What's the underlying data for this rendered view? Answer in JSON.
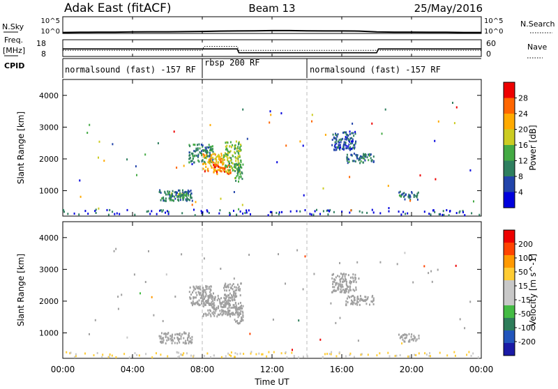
{
  "header": {
    "station": "Adak East (fitACF)",
    "beam": "Beam 13",
    "date": "25/May/2016"
  },
  "noise_panel": {
    "left_label": "N.Sky",
    "left_ticks": [
      "10^5",
      "10^0"
    ],
    "right_ticks": [
      "10^5",
      "10^0"
    ],
    "right_label": "N.Search"
  },
  "freq_panel": {
    "left_label_1": "Freq.",
    "left_label_2": "[MHz]",
    "left_ticks": [
      "18",
      "8"
    ],
    "right_ticks": [
      "60",
      "0"
    ],
    "right_label": "Nave"
  },
  "cpid_panel": {
    "label": "CPID",
    "segments": [
      {
        "start_hour": 0,
        "end_hour": 8,
        "text": "normalsound (fast) -157 RF"
      },
      {
        "start_hour": 8,
        "end_hour": 14,
        "text": "rbsp 200 RF"
      },
      {
        "start_hour": 14,
        "end_hour": 24,
        "text": "normalsound (fast) -157 RF"
      }
    ]
  },
  "colors": {
    "power_scale": [
      "#0000dd",
      "#2244aa",
      "#2f7f5f",
      "#44aa44",
      "#cccc22",
      "#ffaa00",
      "#ff6600",
      "#ee0000"
    ],
    "velocity_scale": [
      "#1a1aa6",
      "#2255bb",
      "#2e7d5a",
      "#44bb44",
      "#c8c8c8",
      "#c8c8c8",
      "#ffcc33",
      "#ff9900",
      "#ff4400",
      "#ee0000"
    ],
    "ground_scatter": "#a0a0a0"
  },
  "chart_data": [
    {
      "type": "line",
      "panel": "noise",
      "x": [
        0,
        1,
        2,
        3,
        4,
        5,
        6,
        7,
        8,
        9,
        10,
        11,
        12,
        13,
        14,
        15,
        16,
        17,
        18,
        19,
        20,
        21,
        22,
        23,
        24
      ],
      "series": [
        {
          "name": "N.Sky",
          "values": [
            0.3,
            0.35,
            0.4,
            0.4,
            0.45,
            0.5,
            0.5,
            0.55,
            0.6,
            0.7,
            0.75,
            0.8,
            0.85,
            0.85,
            0.8,
            0.75,
            0.75,
            0.7,
            0.45,
            0.4,
            0.4,
            0.35,
            0.35,
            0.3,
            0.3
          ]
        }
      ],
      "ylim": [
        0,
        5
      ]
    },
    {
      "type": "line",
      "panel": "frequency",
      "x": [
        0,
        8,
        8.1,
        10,
        10.1,
        18,
        18.1,
        24
      ],
      "series": [
        {
          "name": "Freq.",
          "values": [
            12.5,
            12.5,
            12.5,
            12.5,
            10.2,
            10.2,
            12.5,
            12.5
          ]
        },
        {
          "name": "Nave",
          "values": [
            22,
            22,
            36,
            36,
            22,
            22,
            22,
            22
          ]
        }
      ]
    },
    {
      "type": "heatmap",
      "panel": "power",
      "xlabel": "",
      "ylabel": "Slant Range [km]",
      "xlim": [
        0,
        24
      ],
      "ylim": [
        200,
        4500
      ],
      "yticks": [
        1000,
        2000,
        3000,
        4000
      ],
      "colorbar_label": "Power [dB]",
      "colorbar_ticks": [
        "4",
        "8",
        "12",
        "16",
        "20",
        "24",
        "28"
      ],
      "clim": [
        0,
        30
      ],
      "patches": [
        {
          "t0": 5.5,
          "t1": 7.4,
          "r0": 700,
          "r1": 1050,
          "value": 8
        },
        {
          "t0": 6.0,
          "t1": 7.3,
          "r0": 720,
          "r1": 960,
          "value": 12
        },
        {
          "t0": 7.2,
          "t1": 8.6,
          "r0": 1900,
          "r1": 2500,
          "value": 10
        },
        {
          "t0": 8.0,
          "t1": 9.3,
          "r0": 1650,
          "r1": 2200,
          "value": 20
        },
        {
          "t0": 8.6,
          "t1": 9.6,
          "r0": 1550,
          "r1": 1850,
          "value": 24
        },
        {
          "t0": 9.2,
          "t1": 10.2,
          "r0": 1600,
          "r1": 2600,
          "value": 14
        },
        {
          "t0": 9.8,
          "t1": 10.3,
          "r0": 1300,
          "r1": 1900,
          "value": 12
        },
        {
          "t0": 15.4,
          "t1": 16.8,
          "r0": 2300,
          "r1": 2900,
          "value": 6
        },
        {
          "t0": 16.2,
          "t1": 17.8,
          "r0": 1900,
          "r1": 2200,
          "value": 8
        },
        {
          "t0": 19.2,
          "t1": 20.4,
          "r0": 750,
          "r1": 1000,
          "value": 8
        }
      ]
    },
    {
      "type": "heatmap",
      "panel": "velocity",
      "xlabel": "Time UT",
      "ylabel": "Slant Range [km]",
      "xlim": [
        0,
        24
      ],
      "ylim": [
        200,
        4500
      ],
      "xticks": [
        "00:00",
        "04:00",
        "08:00",
        "12:00",
        "16:00",
        "20:00",
        "00:00"
      ],
      "yticks": [
        1000,
        2000,
        3000,
        4000
      ],
      "colorbar_label": "Velocity [m s^-1]",
      "colorbar_ticks": [
        "200",
        "100",
        "50",
        "15",
        "-15",
        "-50",
        "-100",
        "-200"
      ],
      "patches": [
        {
          "t0": 5.5,
          "t1": 7.4,
          "r0": 700,
          "r1": 1050,
          "value": 0
        },
        {
          "t0": 7.2,
          "t1": 8.6,
          "r0": 1900,
          "r1": 2500,
          "value": 0
        },
        {
          "t0": 8.0,
          "t1": 9.6,
          "r0": 1550,
          "r1": 2200,
          "value": 0
        },
        {
          "t0": 9.2,
          "t1": 10.2,
          "r0": 1600,
          "r1": 2600,
          "value": 0
        },
        {
          "t0": 9.8,
          "t1": 10.3,
          "r0": 1300,
          "r1": 1900,
          "value": 0
        },
        {
          "t0": 15.4,
          "t1": 16.8,
          "r0": 2300,
          "r1": 2900,
          "value": 0
        },
        {
          "t0": 16.2,
          "t1": 17.8,
          "r0": 1900,
          "r1": 2200,
          "value": 0
        },
        {
          "t0": 19.2,
          "t1": 20.4,
          "r0": 750,
          "r1": 1000,
          "value": 0
        }
      ]
    }
  ]
}
